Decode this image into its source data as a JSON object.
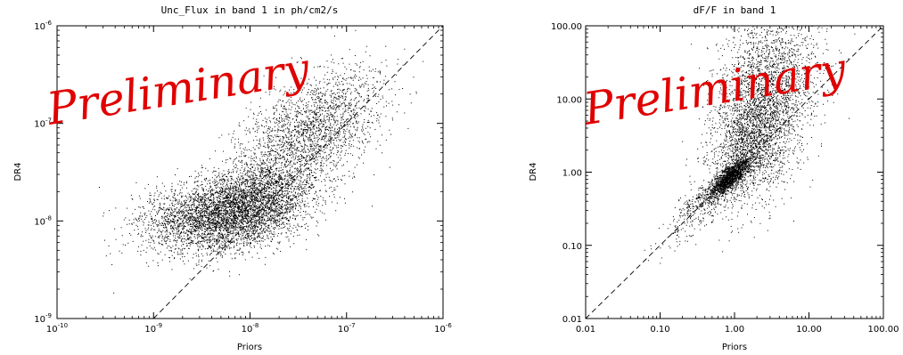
{
  "chart_data": [
    {
      "type": "scatter",
      "title": "Unc_Flux in band 1 in ph/cm2/s",
      "xlabel": "Priors",
      "ylabel": "DR4",
      "xscale": "log",
      "yscale": "log",
      "xlim": [
        1e-10,
        1e-06
      ],
      "ylim": [
        1e-09,
        1e-06
      ],
      "x_ticks": [
        {
          "value": 1e-10,
          "base": "10",
          "exp": "-10"
        },
        {
          "value": 1e-09,
          "base": "10",
          "exp": "-9"
        },
        {
          "value": 1e-08,
          "base": "10",
          "exp": "-8"
        },
        {
          "value": 1e-07,
          "base": "10",
          "exp": "-7"
        },
        {
          "value": 1e-06,
          "base": "10",
          "exp": "-6"
        }
      ],
      "y_ticks": [
        {
          "value": 1e-09,
          "base": "10",
          "exp": "-9"
        },
        {
          "value": 1e-08,
          "base": "10",
          "exp": "-8"
        },
        {
          "value": 1e-07,
          "base": "10",
          "exp": "-7"
        },
        {
          "value": 1e-06,
          "base": "10",
          "exp": "-6"
        }
      ],
      "reference_line": "y = x (dashed)",
      "clusters": [
        {
          "cx": 9e-09,
          "cy": 1.4e-08,
          "sx": 0.35,
          "sy": 0.22,
          "rho": 0.35,
          "n": 3600
        },
        {
          "cx": 3e-09,
          "cy": 1.1e-08,
          "sx": 0.35,
          "sy": 0.17,
          "rho": 0.2,
          "n": 1500
        },
        {
          "cx": 4e-08,
          "cy": 8e-08,
          "sx": 0.38,
          "sy": 0.32,
          "rho": 0.55,
          "n": 2200
        }
      ],
      "watermark": "Preliminary"
    },
    {
      "type": "scatter",
      "title": "dF/F in band 1",
      "xlabel": "Priors",
      "ylabel": "DR4",
      "xscale": "log",
      "yscale": "log",
      "xlim": [
        0.01,
        100
      ],
      "ylim": [
        0.01,
        100
      ],
      "x_ticks": [
        {
          "value": 0.01,
          "label": "0.01"
        },
        {
          "value": 0.1,
          "label": "0.10"
        },
        {
          "value": 1,
          "label": "1.00"
        },
        {
          "value": 10,
          "label": "10.00"
        },
        {
          "value": 100,
          "label": "100.00"
        }
      ],
      "y_ticks": [
        {
          "value": 0.01,
          "label": "0.01"
        },
        {
          "value": 0.1,
          "label": "0.10"
        },
        {
          "value": 1,
          "label": "1.00"
        },
        {
          "value": 10,
          "label": "10.00"
        },
        {
          "value": 100,
          "label": "100.00"
        }
      ],
      "reference_line": "y = x (dashed)",
      "clusters": [
        {
          "cx": 0.85,
          "cy": 0.85,
          "sx": 0.14,
          "sy": 0.14,
          "rho": 0.8,
          "n": 1500
        },
        {
          "cx": 1.8,
          "cy": 3.0,
          "sx": 0.3,
          "sy": 0.45,
          "rho": 0.3,
          "n": 2500
        },
        {
          "cx": 3.0,
          "cy": 25,
          "sx": 0.35,
          "sy": 0.4,
          "rho": 0.1,
          "n": 1300
        },
        {
          "cx": 0.35,
          "cy": 0.35,
          "sx": 0.25,
          "sy": 0.25,
          "rho": 0.8,
          "n": 400
        }
      ],
      "watermark": "Preliminary"
    }
  ],
  "colors": {
    "points": "#000000",
    "watermark": "#e00000",
    "axes": "#000000"
  }
}
